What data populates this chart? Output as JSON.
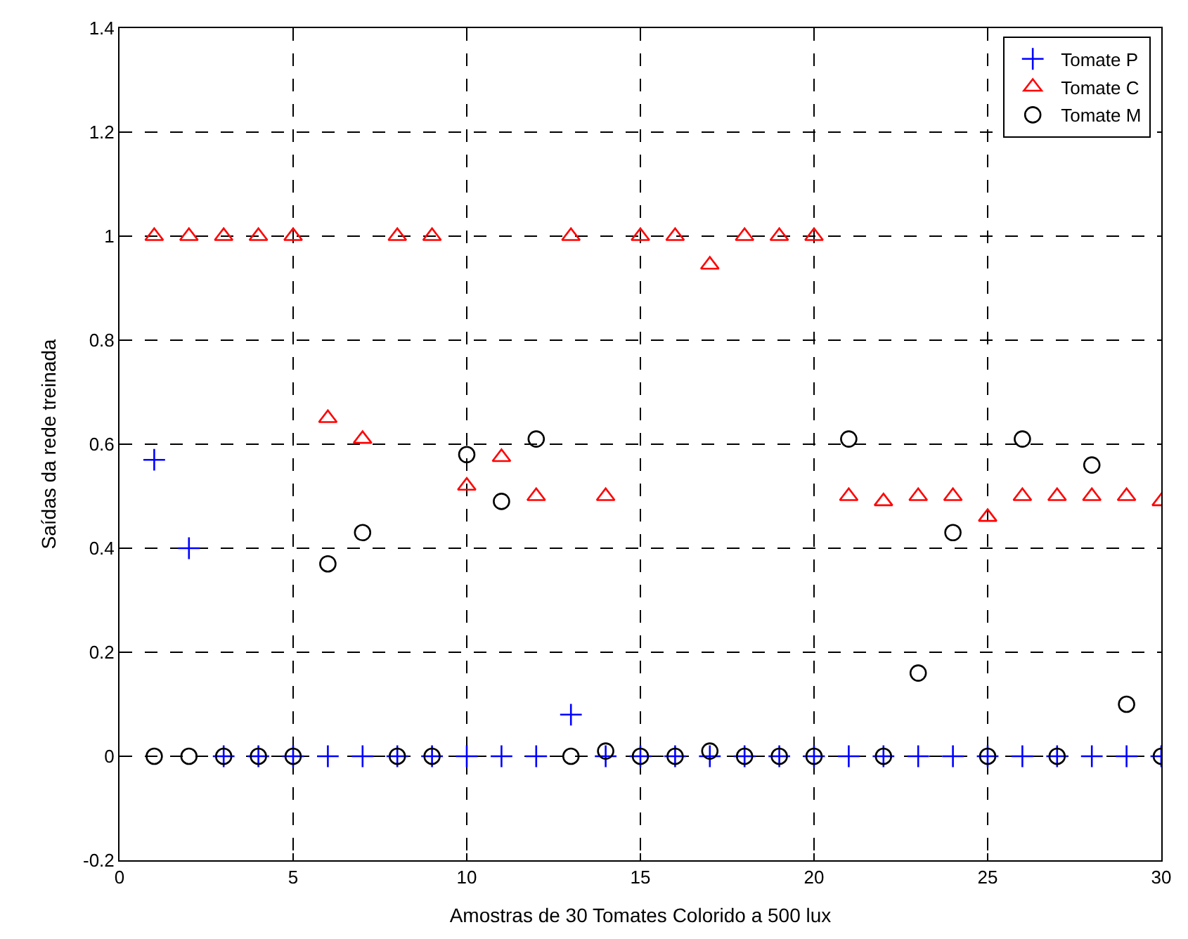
{
  "chart_data": {
    "type": "scatter",
    "xlabel": "Amostras de 30 Tomates Colorido a 500 lux",
    "ylabel": "Saídas da rede treinada",
    "x": [
      1,
      2,
      3,
      4,
      5,
      6,
      7,
      8,
      9,
      10,
      11,
      12,
      13,
      14,
      15,
      16,
      17,
      18,
      19,
      20,
      21,
      22,
      23,
      24,
      25,
      26,
      27,
      28,
      29,
      30
    ],
    "series": [
      {
        "name": "Tomate P",
        "color": "#0000ff",
        "marker": "cross",
        "values": [
          0.57,
          0.4,
          0,
          0,
          0,
          0,
          0,
          0,
          0,
          0,
          0,
          0,
          0.08,
          0,
          0,
          0,
          0,
          0,
          0,
          0,
          0,
          0,
          0,
          0,
          0,
          0,
          0,
          0,
          0,
          0
        ]
      },
      {
        "name": "Tomate C",
        "color": "#ff0000",
        "marker": "triangle",
        "values": [
          1,
          1,
          1,
          1,
          1,
          0.65,
          0.61,
          1,
          1,
          0.52,
          0.575,
          0.5,
          1,
          0.5,
          1,
          1,
          0.945,
          1,
          1,
          1,
          0.5,
          0.49,
          0.5,
          0.5,
          0.46,
          0.5,
          0.5,
          0.5,
          0.5,
          0.49
        ]
      },
      {
        "name": "Tomate M",
        "color": "#000000",
        "marker": "circle",
        "values": [
          0,
          0,
          0,
          0,
          0,
          0.37,
          0.43,
          0,
          0,
          0.58,
          0.49,
          0.61,
          0,
          0.01,
          0,
          0,
          0.01,
          0,
          0,
          0,
          0.61,
          0,
          0.16,
          0.43,
          0,
          0.61,
          0,
          0.56,
          0.1,
          0
        ]
      }
    ],
    "xlim": [
      0,
      30
    ],
    "xticks": [
      0,
      5,
      10,
      15,
      20,
      25,
      30
    ],
    "ylim": [
      -0.2,
      1.4
    ],
    "yticks": [
      -0.2,
      0,
      0.2,
      0.4,
      0.6,
      0.8,
      1,
      1.2,
      1.4
    ],
    "grid": true,
    "legend": "top right"
  }
}
